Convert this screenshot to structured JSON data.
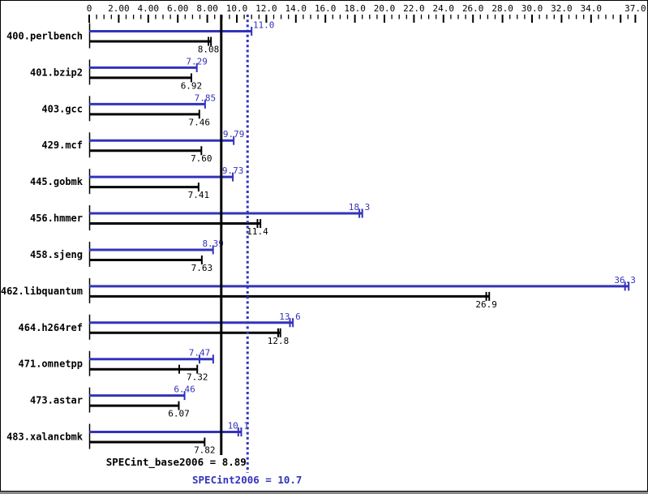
{
  "chart_data": {
    "type": "bar",
    "orientation": "horizontal",
    "title": "",
    "xlabel": "",
    "ylabel": "",
    "axis": {
      "min": 0,
      "max": 37,
      "major_step": 2,
      "minor_step": 0.5,
      "tick_labels": [
        {
          "v": 0,
          "t": "0"
        },
        {
          "v": 2,
          "t": "2.00"
        },
        {
          "v": 4,
          "t": "4.00"
        },
        {
          "v": 6,
          "t": "6.00"
        },
        {
          "v": 8,
          "t": "8.00"
        },
        {
          "v": 10,
          "t": "10.0"
        },
        {
          "v": 12,
          "t": "12.0"
        },
        {
          "v": 14,
          "t": "14.0"
        },
        {
          "v": 16,
          "t": "16.0"
        },
        {
          "v": 18,
          "t": "18.0"
        },
        {
          "v": 20,
          "t": "20.0"
        },
        {
          "v": 22,
          "t": "22.0"
        },
        {
          "v": 24,
          "t": "24.0"
        },
        {
          "v": 26,
          "t": "26.0"
        },
        {
          "v": 28,
          "t": "28.0"
        },
        {
          "v": 30,
          "t": "30.0"
        },
        {
          "v": 32,
          "t": "32.0"
        },
        {
          "v": 34,
          "t": "34.0"
        },
        {
          "v": 37,
          "t": "37.0"
        }
      ]
    },
    "benchmarks": [
      "400.perlbench",
      "401.bzip2",
      "403.gcc",
      "429.mcf",
      "445.gobmk",
      "456.hmmer",
      "458.sjeng",
      "462.libquantum",
      "464.h264ref",
      "471.omnetpp",
      "473.astar",
      "483.xalancbmk"
    ],
    "series": [
      {
        "name": "SPECint2006",
        "role": "peak",
        "color": "#3333bb",
        "points": [
          {
            "label": "11.0",
            "value": 11.0
          },
          {
            "label": "7.29",
            "value": 7.29
          },
          {
            "label": "7.85",
            "value": 7.85
          },
          {
            "label": "9.79",
            "value": 9.79
          },
          {
            "label": "9.73",
            "value": 9.73
          },
          {
            "label": "18.3",
            "value": 18.3,
            "marks": [
              18.5
            ]
          },
          {
            "label": "8.39",
            "value": 8.39
          },
          {
            "label": "36.3",
            "value": 36.3,
            "marks": [
              36.55
            ]
          },
          {
            "label": "13.6",
            "value": 13.6,
            "marks": [
              13.8
            ]
          },
          {
            "label": "7.47",
            "value": 7.47,
            "marks": [
              8.4
            ]
          },
          {
            "label": "6.46",
            "value": 6.46
          },
          {
            "label": "10.1",
            "value": 10.1,
            "marks": [
              10.3
            ]
          }
        ]
      },
      {
        "name": "SPECint_base2006",
        "role": "base",
        "color": "#000000",
        "points": [
          {
            "label": "8.08",
            "value": 8.08,
            "marks": [
              8.25
            ]
          },
          {
            "label": "6.92",
            "value": 6.92
          },
          {
            "label": "7.46",
            "value": 7.46
          },
          {
            "label": "7.60",
            "value": 7.6
          },
          {
            "label": "7.41",
            "value": 7.41
          },
          {
            "label": "11.4",
            "value": 11.4,
            "marks": [
              11.6
            ]
          },
          {
            "label": "7.63",
            "value": 7.63
          },
          {
            "label": "26.9",
            "value": 26.9,
            "marks": [
              27.1
            ]
          },
          {
            "label": "12.8",
            "value": 12.8,
            "marks": [
              12.95
            ]
          },
          {
            "label": "7.32",
            "value": 7.32,
            "marks": [
              6.1
            ]
          },
          {
            "label": "6.07",
            "value": 6.07
          },
          {
            "label": "7.82",
            "value": 7.82
          }
        ]
      }
    ],
    "reference_lines": [
      {
        "name": "base-mean",
        "value": 8.89,
        "style": "solid",
        "color": "#000000",
        "label": "SPECint_base2006 = 8.89"
      },
      {
        "name": "peak-mean",
        "value": 10.7,
        "style": "dotted",
        "color": "#3333bb",
        "label": "SPECint2006 = 10.7"
      }
    ],
    "legend": "none",
    "grid": false,
    "background": "#ffffff"
  }
}
